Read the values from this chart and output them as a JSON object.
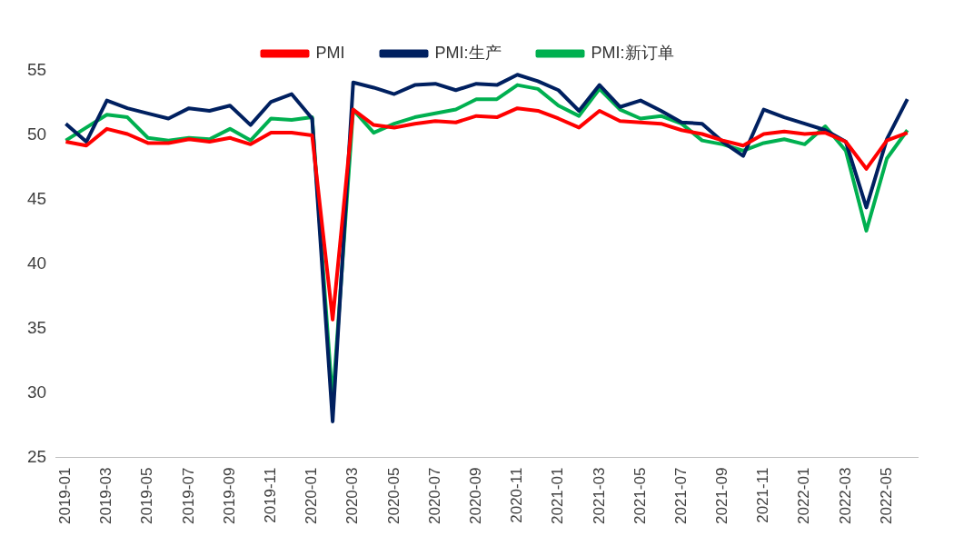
{
  "chart_data": {
    "type": "line",
    "categories": [
      "2019-01",
      null,
      "2019-03",
      null,
      "2019-05",
      null,
      "2019-07",
      null,
      "2019-09",
      null,
      "2019-11",
      null,
      "2020-01",
      null,
      "2020-03",
      null,
      "2020-05",
      null,
      "2020-07",
      null,
      "2020-09",
      null,
      "2020-11",
      null,
      "2021-01",
      null,
      "2021-03",
      null,
      "2021-05",
      null,
      "2021-07",
      null,
      "2021-09",
      null,
      "2021-11",
      null,
      "2022-01",
      null,
      "2022-03",
      null,
      "2022-05",
      null
    ],
    "series": [
      {
        "name": "PMI",
        "color": "#ff0000",
        "values": [
          49.5,
          49.2,
          50.5,
          50.1,
          49.4,
          49.4,
          49.7,
          49.5,
          49.8,
          49.3,
          50.2,
          50.2,
          50.0,
          35.7,
          52.0,
          50.8,
          50.6,
          50.9,
          51.1,
          51.0,
          51.5,
          51.4,
          52.1,
          51.9,
          51.3,
          50.6,
          51.9,
          51.1,
          51.0,
          50.9,
          50.4,
          50.1,
          49.6,
          49.2,
          50.1,
          50.3,
          50.1,
          50.2,
          49.5,
          47.4,
          49.6,
          50.2
        ]
      },
      {
        "name": "PMI:生产",
        "color": "#002060",
        "values": [
          50.9,
          49.5,
          52.7,
          52.1,
          51.7,
          51.3,
          52.1,
          51.9,
          52.3,
          50.8,
          52.6,
          53.2,
          51.3,
          27.8,
          54.1,
          53.7,
          53.2,
          53.9,
          54.0,
          53.5,
          54.0,
          53.9,
          54.7,
          54.2,
          53.5,
          51.9,
          53.9,
          52.2,
          52.7,
          51.9,
          51.0,
          50.9,
          49.5,
          48.4,
          52.0,
          51.4,
          50.9,
          50.4,
          49.5,
          44.4,
          49.7,
          52.8
        ]
      },
      {
        "name": "PMI:新订单",
        "color": "#00b050",
        "values": [
          49.6,
          50.6,
          51.6,
          51.4,
          49.8,
          49.6,
          49.8,
          49.7,
          50.5,
          49.6,
          51.3,
          51.2,
          51.4,
          29.3,
          52.0,
          50.2,
          50.9,
          51.4,
          51.7,
          52.0,
          52.8,
          52.8,
          53.9,
          53.6,
          52.3,
          51.5,
          53.6,
          52.0,
          51.3,
          51.5,
          50.9,
          49.6,
          49.3,
          48.8,
          49.4,
          49.7,
          49.3,
          50.7,
          48.8,
          42.6,
          48.2,
          50.4
        ]
      }
    ],
    "ylim": [
      25,
      55
    ],
    "yticks": [
      25,
      30,
      35,
      40,
      45,
      50,
      55
    ],
    "legend": "top",
    "marker": "none",
    "line_style": "solid"
  }
}
